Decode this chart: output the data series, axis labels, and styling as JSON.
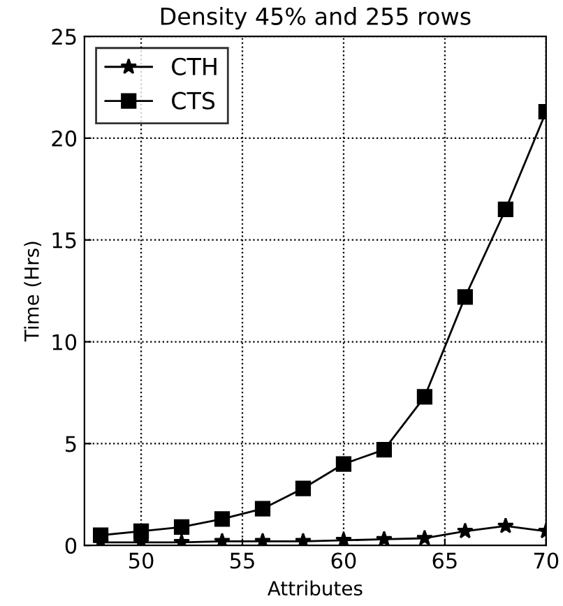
{
  "chart_data": {
    "type": "line",
    "title": "Density 45% and 255 rows",
    "xlabel": "Attributes",
    "ylabel": "Time (Hrs)",
    "x": [
      48,
      50,
      52,
      54,
      56,
      58,
      60,
      62,
      64,
      66,
      68,
      70
    ],
    "series": [
      {
        "name": "CTH",
        "color": "#000000",
        "marker": "star",
        "values": [
          0.15,
          0.15,
          0.15,
          0.2,
          0.2,
          0.2,
          0.25,
          0.3,
          0.35,
          0.7,
          0.95,
          0.7
        ]
      },
      {
        "name": "CTS",
        "color": "#000000",
        "marker": "square",
        "values": [
          0.5,
          0.7,
          0.9,
          1.3,
          1.8,
          2.8,
          4.0,
          4.7,
          7.3,
          12.2,
          16.5,
          21.3
        ]
      }
    ],
    "xlim": [
      47.2,
      70
    ],
    "ylim": [
      0,
      25
    ],
    "xticks": [
      50,
      55,
      60,
      65,
      70
    ],
    "yticks": [
      0,
      5,
      10,
      15,
      20,
      25
    ],
    "grid": true,
    "legend": "top left",
    "line_style": "solid"
  }
}
